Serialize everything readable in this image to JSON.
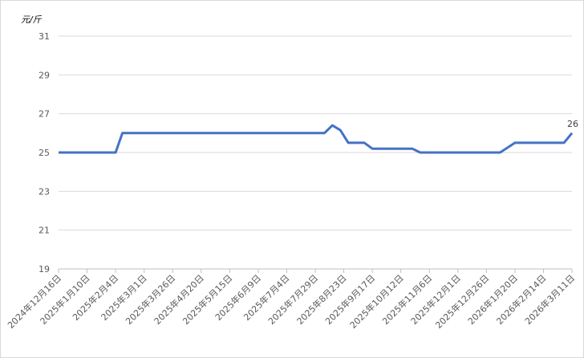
{
  "chart_data": {
    "type": "line",
    "title": "",
    "ylabel": "元/斤",
    "xlabel": "",
    "ylim": [
      19,
      31
    ],
    "yticks": [
      19,
      21,
      23,
      25,
      27,
      29,
      31
    ],
    "grid": true,
    "xlim": [
      "2024-12-16",
      "2026-03-11"
    ],
    "xtick_labels": [
      "2024年12月16日",
      "2025年1月10日",
      "2025年2月4日",
      "2025年3月1日",
      "2025年3月26日",
      "2025年4月20日",
      "2025年5月15日",
      "2025年6月9日",
      "2025年7月4日",
      "2025年7月29日",
      "2025年8月23日",
      "2025年9月17日",
      "2025年10月12日",
      "2025年11月6日",
      "2025年12月1日",
      "2025年12月26日",
      "2026年1月20日",
      "2026年2月14日",
      "2026年3月11日"
    ],
    "xtick_dates": [
      "2024-12-16",
      "2025-01-10",
      "2025-02-04",
      "2025-03-01",
      "2025-03-26",
      "2025-04-20",
      "2025-05-15",
      "2025-06-09",
      "2025-07-04",
      "2025-07-29",
      "2025-08-23",
      "2025-09-17",
      "2025-10-12",
      "2025-11-06",
      "2025-12-01",
      "2025-12-26",
      "2026-01-20",
      "2026-02-14",
      "2026-03-11"
    ],
    "series": [
      {
        "color": "#4472C4",
        "points": [
          [
            "2024-12-16",
            25
          ],
          [
            "2025-02-04",
            25
          ],
          [
            "2025-02-10",
            26
          ],
          [
            "2025-08-06",
            26
          ],
          [
            "2025-08-13",
            26.4
          ],
          [
            "2025-08-20",
            26.15
          ],
          [
            "2025-08-27",
            25.5
          ],
          [
            "2025-09-10",
            25.5
          ],
          [
            "2025-09-17",
            25.2
          ],
          [
            "2025-10-22",
            25.2
          ],
          [
            "2025-10-29",
            25
          ],
          [
            "2026-01-07",
            25
          ],
          [
            "2026-01-20",
            25.5
          ],
          [
            "2026-03-04",
            25.5
          ],
          [
            "2026-03-11",
            26
          ]
        ]
      }
    ],
    "data_labels": [
      {
        "date": "2026-03-11",
        "text": "26"
      }
    ]
  }
}
